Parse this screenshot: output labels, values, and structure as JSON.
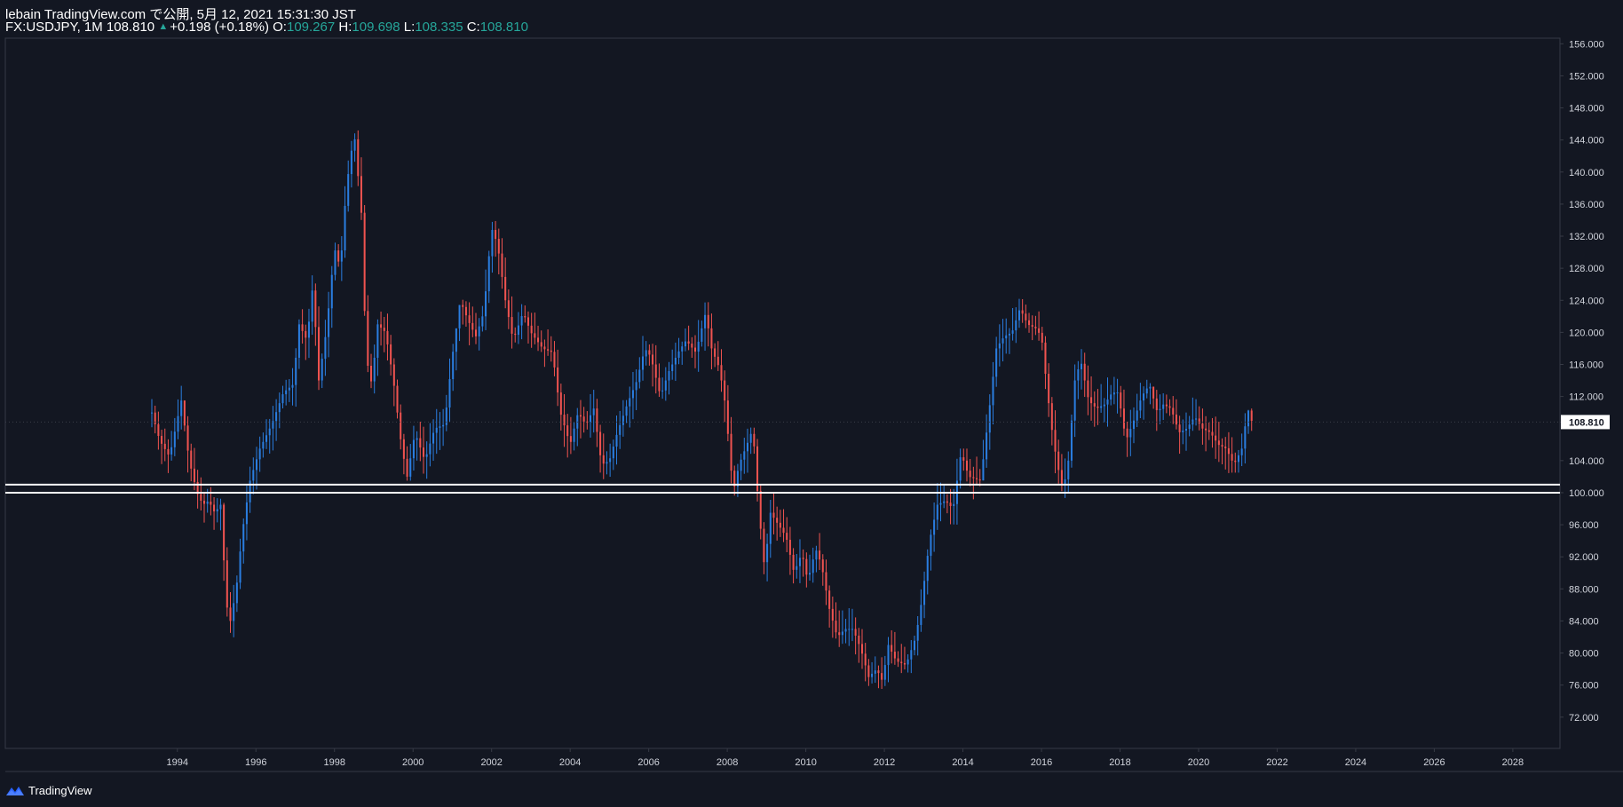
{
  "header": {
    "line1": "lebain TradingView.com で公開, 5月 12, 2021 15:31:30 JST",
    "symbol": "FX:USDJPY, 1M 108.810",
    "change": "+0.198 (+0.18%)",
    "o_label": "O:",
    "o_value": "109.267",
    "h_label": "H:",
    "h_value": "109.698",
    "l_label": "L:",
    "l_value": "108.335",
    "c_label": "C:",
    "c_value": "108.810"
  },
  "brand": {
    "label": "TradingView",
    "icon": "tradingview-logo-icon"
  },
  "colors": {
    "background": "#131722",
    "up": "#2a7ddf",
    "down": "#ef5350",
    "grid": "#1e2230",
    "axis_text": "#d1d4dc",
    "border": "#363a45",
    "last_price_tag": "#ffffff",
    "highlight_lines": "#ffffff",
    "header_values": "#26a69a"
  },
  "chart_data": {
    "type": "candlestick",
    "symbol": "FX:USDJPY",
    "interval": "1M",
    "last_price": "108.810",
    "x_ticks": [
      "1994",
      "1996",
      "1998",
      "2000",
      "2002",
      "2004",
      "2006",
      "2008",
      "2010",
      "2012",
      "2014",
      "2016",
      "2018",
      "2020",
      "2022",
      "2024",
      "2026",
      "2028"
    ],
    "x_range": [
      1989.62,
      2029.2
    ],
    "y_ticks": [
      "72.000",
      "76.000",
      "80.000",
      "84.000",
      "88.000",
      "92.000",
      "96.000",
      "100.000",
      "104.000",
      "108.810",
      "112.000",
      "116.000",
      "120.000",
      "124.000",
      "128.000",
      "132.000",
      "136.000",
      "140.000",
      "144.000",
      "148.000",
      "152.000",
      "156.000"
    ],
    "y_range": [
      68.1,
      156.7
    ],
    "horizontal_levels": [
      101.0,
      100.0
    ],
    "close_path": [
      [
        1993.35,
        110.0
      ],
      [
        1993.55,
        106.5
      ],
      [
        1993.8,
        104.5
      ],
      [
        1993.95,
        108.0
      ],
      [
        1994.1,
        111.5
      ],
      [
        1994.3,
        104.0
      ],
      [
        1994.5,
        100.0
      ],
      [
        1994.65,
        98.5
      ],
      [
        1994.8,
        99.0
      ],
      [
        1994.95,
        97.5
      ],
      [
        1995.1,
        98.5
      ],
      [
        1995.25,
        86.0
      ],
      [
        1995.35,
        84.0
      ],
      [
        1995.5,
        88.0
      ],
      [
        1995.65,
        95.0
      ],
      [
        1995.85,
        101.5
      ],
      [
        1996.1,
        105.5
      ],
      [
        1996.4,
        108.5
      ],
      [
        1996.7,
        112.5
      ],
      [
        1996.95,
        113.5
      ],
      [
        1997.1,
        121.0
      ],
      [
        1997.3,
        119.0
      ],
      [
        1997.45,
        126.0
      ],
      [
        1997.6,
        114.0
      ],
      [
        1997.8,
        120.5
      ],
      [
        1998.0,
        130.5
      ],
      [
        1998.15,
        128.0
      ],
      [
        1998.3,
        138.0
      ],
      [
        1998.5,
        145.0
      ],
      [
        1998.7,
        134.0
      ],
      [
        1998.8,
        117.0
      ],
      [
        1998.95,
        113.5
      ],
      [
        1999.1,
        121.0
      ],
      [
        1999.3,
        120.0
      ],
      [
        1999.5,
        114.0
      ],
      [
        1999.7,
        106.0
      ],
      [
        1999.85,
        102.0
      ],
      [
        2000.05,
        107.5
      ],
      [
        2000.3,
        104.0
      ],
      [
        2000.55,
        108.0
      ],
      [
        2000.8,
        108.5
      ],
      [
        2001.0,
        117.0
      ],
      [
        2001.2,
        124.0
      ],
      [
        2001.4,
        121.5
      ],
      [
        2001.6,
        119.5
      ],
      [
        2001.8,
        122.5
      ],
      [
        2002.0,
        133.0
      ],
      [
        2002.15,
        131.0
      ],
      [
        2002.35,
        124.0
      ],
      [
        2002.55,
        119.0
      ],
      [
        2002.8,
        122.5
      ],
      [
        2003.0,
        120.0
      ],
      [
        2003.3,
        118.0
      ],
      [
        2003.55,
        117.5
      ],
      [
        2003.75,
        110.0
      ],
      [
        2004.0,
        106.0
      ],
      [
        2004.2,
        110.0
      ],
      [
        2004.4,
        108.5
      ],
      [
        2004.6,
        110.5
      ],
      [
        2004.8,
        103.5
      ],
      [
        2005.0,
        104.0
      ],
      [
        2005.2,
        107.5
      ],
      [
        2005.45,
        111.0
      ],
      [
        2005.7,
        114.0
      ],
      [
        2005.9,
        118.0
      ],
      [
        2006.05,
        117.0
      ],
      [
        2006.3,
        112.0
      ],
      [
        2006.5,
        115.0
      ],
      [
        2006.75,
        117.5
      ],
      [
        2006.95,
        119.0
      ],
      [
        2007.2,
        117.5
      ],
      [
        2007.45,
        122.5
      ],
      [
        2007.6,
        118.0
      ],
      [
        2007.8,
        115.5
      ],
      [
        2007.95,
        111.0
      ],
      [
        2008.15,
        100.0
      ],
      [
        2008.3,
        103.5
      ],
      [
        2008.5,
        106.0
      ],
      [
        2008.65,
        108.0
      ],
      [
        2008.8,
        98.0
      ],
      [
        2008.95,
        90.5
      ],
      [
        2009.1,
        97.5
      ],
      [
        2009.3,
        96.0
      ],
      [
        2009.5,
        94.5
      ],
      [
        2009.7,
        90.0
      ],
      [
        2009.9,
        92.5
      ],
      [
        2010.05,
        89.0
      ],
      [
        2010.25,
        93.0
      ],
      [
        2010.4,
        91.0
      ],
      [
        2010.6,
        85.5
      ],
      [
        2010.8,
        82.0
      ],
      [
        2011.0,
        83.0
      ],
      [
        2011.2,
        83.0
      ],
      [
        2011.4,
        80.5
      ],
      [
        2011.6,
        77.0
      ],
      [
        2011.8,
        78.0
      ],
      [
        2011.95,
        76.5
      ],
      [
        2012.1,
        81.0
      ],
      [
        2012.3,
        79.0
      ],
      [
        2012.55,
        78.5
      ],
      [
        2012.8,
        82.0
      ],
      [
        2012.95,
        86.5
      ],
      [
        2013.15,
        94.0
      ],
      [
        2013.35,
        98.5
      ],
      [
        2013.55,
        99.0
      ],
      [
        2013.75,
        98.0
      ],
      [
        2013.95,
        105.0
      ],
      [
        2014.15,
        102.0
      ],
      [
        2014.45,
        101.5
      ],
      [
        2014.65,
        109.5
      ],
      [
        2014.85,
        118.0
      ],
      [
        2015.05,
        119.5
      ],
      [
        2015.25,
        120.0
      ],
      [
        2015.45,
        123.0
      ],
      [
        2015.65,
        121.0
      ],
      [
        2015.85,
        120.5
      ],
      [
        2016.0,
        119.5
      ],
      [
        2016.15,
        112.5
      ],
      [
        2016.3,
        106.5
      ],
      [
        2016.5,
        101.0
      ],
      [
        2016.65,
        102.0
      ],
      [
        2016.85,
        114.0
      ],
      [
        2017.0,
        116.5
      ],
      [
        2017.2,
        111.5
      ],
      [
        2017.4,
        110.5
      ],
      [
        2017.6,
        111.0
      ],
      [
        2017.8,
        112.5
      ],
      [
        2017.95,
        112.5
      ],
      [
        2018.15,
        106.5
      ],
      [
        2018.35,
        109.0
      ],
      [
        2018.55,
        112.0
      ],
      [
        2018.75,
        113.5
      ],
      [
        2018.95,
        110.0
      ],
      [
        2019.1,
        111.0
      ],
      [
        2019.3,
        110.5
      ],
      [
        2019.5,
        107.5
      ],
      [
        2019.7,
        108.0
      ],
      [
        2019.9,
        109.5
      ],
      [
        2020.1,
        108.0
      ],
      [
        2020.3,
        107.5
      ],
      [
        2020.5,
        106.0
      ],
      [
        2020.7,
        105.5
      ],
      [
        2020.9,
        103.5
      ],
      [
        2021.1,
        105.5
      ],
      [
        2021.25,
        110.5
      ],
      [
        2021.36,
        108.81
      ]
    ],
    "range_path": [
      [
        1993.4,
        104.0,
        113.5
      ],
      [
        1993.8,
        101.0,
        111.0
      ],
      [
        1994.1,
        100.5,
        113.5
      ],
      [
        1994.5,
        96.5,
        104.0
      ],
      [
        1994.9,
        96.0,
        100.5
      ],
      [
        1995.3,
        79.5,
        98.0
      ],
      [
        1995.7,
        84.5,
        101.0
      ],
      [
        1996.2,
        101.0,
        108.5
      ],
      [
        1996.8,
        107.5,
        114.5
      ],
      [
        1997.3,
        110.5,
        127.0
      ],
      [
        1997.8,
        113.5,
        130.5
      ],
      [
        1998.3,
        125.0,
        140.0
      ],
      [
        1998.55,
        130.0,
        147.5
      ],
      [
        1998.9,
        108.5,
        141.0
      ],
      [
        1999.3,
        110.5,
        124.5
      ],
      [
        1999.8,
        101.5,
        120.0
      ],
      [
        2000.4,
        101.5,
        111.5
      ],
      [
        2000.9,
        104.0,
        116.0
      ],
      [
        2001.4,
        113.5,
        127.0
      ],
      [
        2002.0,
        115.0,
        135.0
      ],
      [
        2002.4,
        115.5,
        133.5
      ],
      [
        2002.8,
        115.5,
        125.5
      ],
      [
        2003.3,
        115.5,
        122.0
      ],
      [
        2003.8,
        104.0,
        121.0
      ],
      [
        2004.4,
        101.5,
        114.5
      ],
      [
        2004.9,
        101.5,
        111.5
      ],
      [
        2005.5,
        103.5,
        117.0
      ],
      [
        2006.0,
        110.5,
        121.0
      ],
      [
        2006.5,
        108.5,
        119.5
      ],
      [
        2007.0,
        111.5,
        122.0
      ],
      [
        2007.5,
        111.5,
        124.0
      ],
      [
        2008.0,
        104.0,
        117.0
      ],
      [
        2008.3,
        95.5,
        110.5
      ],
      [
        2008.7,
        96.5,
        108.5
      ],
      [
        2009.0,
        86.5,
        100.5
      ],
      [
        2009.5,
        88.0,
        101.5
      ],
      [
        2010.0,
        85.0,
        95.0
      ],
      [
        2010.5,
        82.5,
        95.0
      ],
      [
        2011.0,
        80.0,
        86.0
      ],
      [
        2011.5,
        76.0,
        86.0
      ],
      [
        2011.95,
        75.5,
        80.5
      ],
      [
        2012.3,
        77.5,
        84.0
      ],
      [
        2012.9,
        77.5,
        87.0
      ],
      [
        2013.4,
        86.5,
        103.5
      ],
      [
        2013.9,
        93.5,
        105.5
      ],
      [
        2014.4,
        100.5,
        105.5
      ],
      [
        2014.9,
        105.0,
        121.0
      ],
      [
        2015.5,
        115.5,
        126.0
      ],
      [
        2016.0,
        110.0,
        123.0
      ],
      [
        2016.5,
        98.5,
        112.5
      ],
      [
        2016.9,
        100.5,
        118.5
      ],
      [
        2017.5,
        107.5,
        115.5
      ],
      [
        2018.0,
        104.5,
        114.0
      ],
      [
        2018.6,
        104.0,
        114.5
      ],
      [
        2019.0,
        105.0,
        112.5
      ],
      [
        2019.5,
        104.5,
        112.0
      ],
      [
        2020.2,
        101.5,
        112.0
      ],
      [
        2020.8,
        102.5,
        108.0
      ],
      [
        2021.3,
        102.5,
        110.5
      ]
    ]
  }
}
